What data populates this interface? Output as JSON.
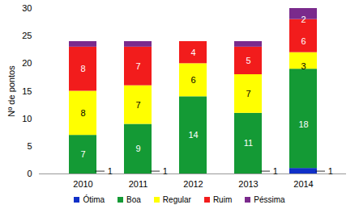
{
  "chart_data": {
    "type": "bar",
    "stacked": true,
    "data_labels": true,
    "grid": false,
    "legend": "bottom",
    "y_label": "Nº de pontos",
    "categories": [
      "2010",
      "2011",
      "2012",
      "2013",
      "2014"
    ],
    "ylim": [
      0,
      30
    ],
    "yticks": [
      0,
      5,
      10,
      15,
      20,
      25,
      30
    ],
    "series": [
      {
        "name": "Ótima",
        "color": "#1030c8",
        "values": [
          null,
          null,
          null,
          null,
          1
        ]
      },
      {
        "name": "Boa",
        "color": "#149a35",
        "values": [
          7,
          9,
          14,
          11,
          18
        ]
      },
      {
        "name": "Regular",
        "color": "#ffff00",
        "values": [
          8,
          7,
          6,
          7,
          3
        ]
      },
      {
        "name": "Ruim",
        "color": "#f21c1c",
        "values": [
          8,
          7,
          4,
          5,
          6
        ]
      },
      {
        "name": "Péssima",
        "color": "#7a2a8c",
        "values": [
          1,
          1,
          null,
          1,
          2
        ]
      }
    ]
  }
}
